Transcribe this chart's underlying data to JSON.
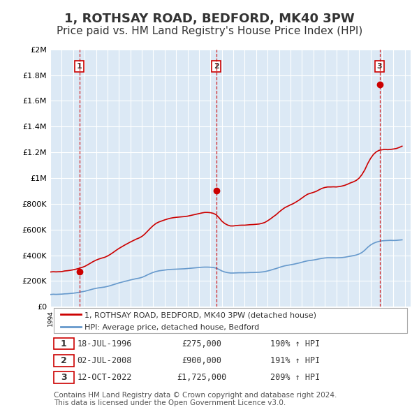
{
  "title": "1, ROTHSAY ROAD, BEDFORD, MK40 3PW",
  "subtitle": "Price paid vs. HM Land Registry's House Price Index (HPI)",
  "title_fontsize": 13,
  "subtitle_fontsize": 11,
  "background_color": "#ffffff",
  "plot_bg_color": "#dce9f5",
  "grid_color": "#ffffff",
  "xmin": 1994.0,
  "xmax": 2025.5,
  "ymin": 0,
  "ymax": 2000000,
  "yticks": [
    0,
    200000,
    400000,
    600000,
    800000,
    1000000,
    1200000,
    1400000,
    1600000,
    1800000,
    2000000
  ],
  "ytick_labels": [
    "£0",
    "£200K",
    "£400K",
    "£600K",
    "£800K",
    "£1M",
    "£1.2M",
    "£1.4M",
    "£1.6M",
    "£1.8M",
    "£2M"
  ],
  "red_line_color": "#cc0000",
  "blue_line_color": "#6699cc",
  "sale_marker_color": "#cc0000",
  "sale_dates": [
    1996.54,
    2008.5,
    2022.79
  ],
  "sale_prices": [
    275000,
    900000,
    1725000
  ],
  "sale_labels": [
    "1",
    "2",
    "3"
  ],
  "legend_red_label": "1, ROTHSAY ROAD, BEDFORD, MK40 3PW (detached house)",
  "legend_blue_label": "HPI: Average price, detached house, Bedford",
  "table_rows": [
    {
      "num": "1",
      "date": "18-JUL-1996",
      "price": "£275,000",
      "hpi": "190% ↑ HPI"
    },
    {
      "num": "2",
      "date": "02-JUL-2008",
      "price": "£900,000",
      "hpi": "191% ↑ HPI"
    },
    {
      "num": "3",
      "date": "12-OCT-2022",
      "price": "£1,725,000",
      "hpi": "209% ↑ HPI"
    }
  ],
  "footnote": "Contains HM Land Registry data © Crown copyright and database right 2024.\nThis data is licensed under the Open Government Licence v3.0.",
  "footnote_fontsize": 7.5,
  "line_x": [
    1994.0,
    1994.25,
    1994.5,
    1994.75,
    1995.0,
    1995.25,
    1995.5,
    1995.75,
    1996.0,
    1996.25,
    1996.5,
    1996.75,
    1997.0,
    1997.25,
    1997.5,
    1997.75,
    1998.0,
    1998.25,
    1998.5,
    1998.75,
    1999.0,
    1999.25,
    1999.5,
    1999.75,
    2000.0,
    2000.25,
    2000.5,
    2000.75,
    2001.0,
    2001.25,
    2001.5,
    2001.75,
    2002.0,
    2002.25,
    2002.5,
    2002.75,
    2003.0,
    2003.25,
    2003.5,
    2003.75,
    2004.0,
    2004.25,
    2004.5,
    2004.75,
    2005.0,
    2005.25,
    2005.5,
    2005.75,
    2006.0,
    2006.25,
    2006.5,
    2006.75,
    2007.0,
    2007.25,
    2007.5,
    2007.75,
    2008.0,
    2008.25,
    2008.5,
    2008.75,
    2009.0,
    2009.25,
    2009.5,
    2009.75,
    2010.0,
    2010.25,
    2010.5,
    2010.75,
    2011.0,
    2011.25,
    2011.5,
    2011.75,
    2012.0,
    2012.25,
    2012.5,
    2012.75,
    2013.0,
    2013.25,
    2013.5,
    2013.75,
    2014.0,
    2014.25,
    2014.5,
    2014.75,
    2015.0,
    2015.25,
    2015.5,
    2015.75,
    2016.0,
    2016.25,
    2016.5,
    2016.75,
    2017.0,
    2017.25,
    2017.5,
    2017.75,
    2018.0,
    2018.25,
    2018.5,
    2018.75,
    2019.0,
    2019.25,
    2019.5,
    2019.75,
    2020.0,
    2020.25,
    2020.5,
    2020.75,
    2021.0,
    2021.25,
    2021.5,
    2021.75,
    2022.0,
    2022.25,
    2022.5,
    2022.75,
    2023.0,
    2023.25,
    2023.5,
    2023.75,
    2024.0,
    2024.25,
    2024.5,
    2024.75
  ],
  "hpi_y": [
    95000,
    97000,
    96000,
    97000,
    98000,
    100000,
    101000,
    103000,
    105000,
    108000,
    112000,
    116000,
    120000,
    126000,
    132000,
    138000,
    143000,
    147000,
    150000,
    153000,
    158000,
    164000,
    171000,
    178000,
    185000,
    191000,
    197000,
    202000,
    208000,
    213000,
    218000,
    222000,
    228000,
    237000,
    248000,
    258000,
    267000,
    274000,
    279000,
    282000,
    285000,
    288000,
    290000,
    291000,
    292000,
    293000,
    294000,
    295000,
    297000,
    299000,
    301000,
    303000,
    305000,
    307000,
    308000,
    308000,
    307000,
    305000,
    300000,
    290000,
    278000,
    270000,
    265000,
    262000,
    262000,
    263000,
    264000,
    264000,
    264000,
    265000,
    266000,
    266000,
    267000,
    268000,
    270000,
    273000,
    278000,
    284000,
    291000,
    297000,
    305000,
    312000,
    318000,
    322000,
    326000,
    330000,
    335000,
    340000,
    346000,
    352000,
    357000,
    360000,
    363000,
    367000,
    372000,
    376000,
    379000,
    381000,
    381000,
    381000,
    380000,
    381000,
    382000,
    385000,
    389000,
    393000,
    397000,
    402000,
    410000,
    422000,
    440000,
    462000,
    480000,
    493000,
    502000,
    508000,
    512000,
    514000,
    515000,
    516000,
    515000,
    516000,
    518000,
    520000
  ],
  "red_y": [
    270000,
    272000,
    271000,
    272000,
    273000,
    278000,
    280000,
    283000,
    287000,
    292000,
    298000,
    305000,
    313000,
    325000,
    338000,
    351000,
    362000,
    371000,
    378000,
    384000,
    394000,
    407000,
    422000,
    438000,
    453000,
    466000,
    479000,
    491000,
    503000,
    514000,
    525000,
    534000,
    546000,
    564000,
    587000,
    610000,
    631000,
    648000,
    659000,
    667000,
    675000,
    682000,
    688000,
    692000,
    695000,
    697000,
    699000,
    701000,
    704000,
    709000,
    714000,
    719000,
    724000,
    729000,
    733000,
    733000,
    731000,
    726000,
    715000,
    692000,
    665000,
    647000,
    635000,
    628000,
    628000,
    631000,
    633000,
    634000,
    634000,
    636000,
    638000,
    639000,
    641000,
    643000,
    648000,
    655000,
    668000,
    683000,
    700000,
    716000,
    736000,
    754000,
    770000,
    781000,
    792000,
    802000,
    815000,
    829000,
    845000,
    861000,
    875000,
    882000,
    889000,
    897000,
    909000,
    920000,
    927000,
    931000,
    931000,
    932000,
    931000,
    934000,
    938000,
    944000,
    953000,
    963000,
    971000,
    982000,
    1000000,
    1028000,
    1065000,
    1113000,
    1153000,
    1184000,
    1204000,
    1216000,
    1220000,
    1223000,
    1221000,
    1223000,
    1226000,
    1230000,
    1238000,
    1248000
  ]
}
